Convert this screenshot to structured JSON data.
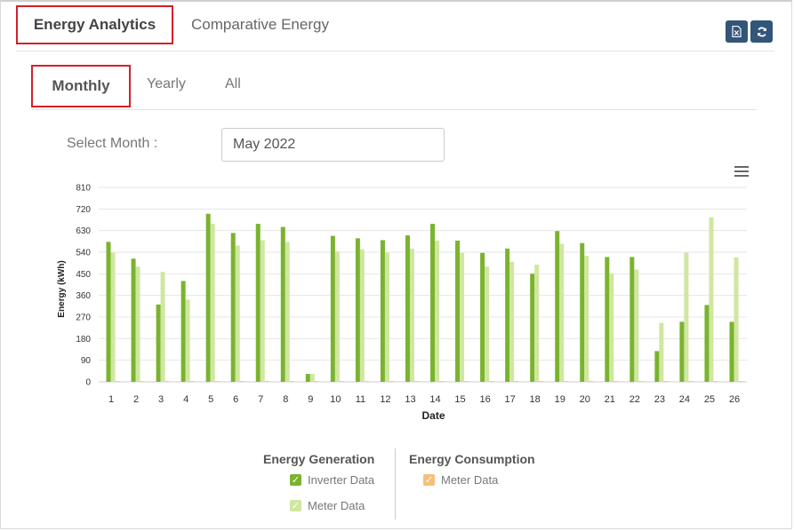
{
  "tabs": {
    "energy_analytics": "Energy Analytics",
    "comparative_energy": "Comparative Energy"
  },
  "toolbar": {
    "export_icon": "file-excel-icon",
    "refresh_icon": "refresh-icon"
  },
  "subtabs": {
    "monthly": "Monthly",
    "yearly": "Yearly",
    "all": "All"
  },
  "filter": {
    "label": "Select Month :",
    "value": "May 2022"
  },
  "colors": {
    "inverter": "#7ab32e",
    "meter_gen": "#cfe7a0",
    "meter_con": "#f5c07a",
    "button": "#32557a",
    "active_border": "#d42029"
  },
  "chart_data": {
    "type": "bar",
    "xlabel": "Date",
    "ylabel": "Energy (kWh)",
    "ylim": [
      0,
      810
    ],
    "yticks": [
      0,
      90,
      180,
      270,
      360,
      450,
      540,
      630,
      720,
      810
    ],
    "grid": true,
    "categories": [
      "1",
      "2",
      "3",
      "4",
      "5",
      "6",
      "7",
      "8",
      "9",
      "10",
      "11",
      "12",
      "13",
      "14",
      "15",
      "16",
      "17",
      "18",
      "19",
      "20",
      "21",
      "22",
      "23",
      "24",
      "25",
      "26"
    ],
    "series": [
      {
        "name": "Inverter Data",
        "values": [
          583,
          513,
          322,
          420,
          700,
          620,
          658,
          645,
          33,
          608,
          598,
          590,
          610,
          658,
          588,
          537,
          555,
          450,
          628,
          578,
          520,
          520,
          128,
          250,
          320,
          250
        ]
      },
      {
        "name": "Meter Data",
        "values": [
          538,
          480,
          458,
          343,
          658,
          568,
          590,
          583,
          33,
          543,
          552,
          538,
          555,
          588,
          537,
          480,
          500,
          488,
          575,
          525,
          452,
          468,
          245,
          538,
          685,
          518
        ]
      },
      {
        "name": "Meter Data",
        "values": [
          3,
          3,
          3,
          3,
          3,
          3,
          3,
          3,
          3,
          3,
          3,
          3,
          3,
          3,
          3,
          3,
          3,
          3,
          3,
          3,
          3,
          3,
          3,
          3,
          3,
          3
        ]
      }
    ]
  },
  "legend": {
    "generation_title": "Energy Generation",
    "consumption_title": "Energy Consumption",
    "inverter": "Inverter Data",
    "meter_gen": "Meter Data",
    "meter_con": "Meter Data"
  }
}
